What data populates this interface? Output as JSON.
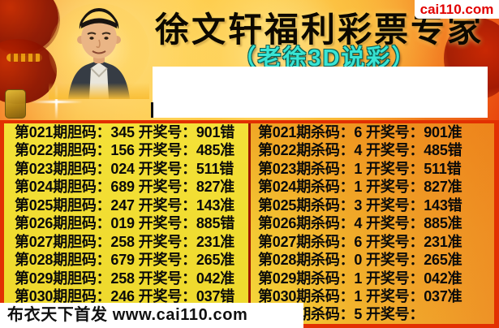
{
  "header": {
    "title": "徐文轩福利彩票专家",
    "subtitle": "（老徐3D说彩）",
    "site_badge": "cai110.com"
  },
  "content_box": {
    "text": ""
  },
  "table": {
    "left": {
      "rows": [
        "第021期胆码：345 开奖号：901错",
        "第022期胆码：156 开奖号：485准",
        "第023期胆码：024 开奖号：511错",
        "第024期胆码：689 开奖号：827准",
        "第025期胆码：247 开奖号：143准",
        "第026期胆码：019 开奖号：885错",
        "第027期胆码：258 开奖号：231准",
        "第028期胆码：679 开奖号：265准",
        "第029期胆码：258 开奖号：042准",
        "第030期胆码：246 开奖号：037错"
      ]
    },
    "right": {
      "rows": [
        "第021期杀码：6 开奖号：901准",
        "第022期杀码：4 开奖号：485错",
        "第023期杀码：1 开奖号：511错",
        "第024期杀码：1 开奖号：827准",
        "第025期杀码：3 开奖号：143错",
        "第026期杀码：4 开奖号：885准",
        "第027期杀码：6 开奖号：231准",
        "第028期杀码：0 开奖号：265准",
        "第029期杀码：1 开奖号：042准",
        "第030期杀码：1 开奖号：037准",
        "第031期杀码：5 开奖号："
      ]
    }
  },
  "footer": {
    "watermark": "布衣天下首发 www.cai110.com"
  },
  "colors": {
    "banner_red": "#e52f00",
    "banner_gold": "#fdc93e",
    "left_column_yellow": "#f2de33",
    "right_column_orange": "#ee9226",
    "subtitle_cyan": "#38e4d4",
    "badge_red": "#e10000",
    "border_red": "#e23002",
    "divider_dark_red": "#9e1700"
  }
}
